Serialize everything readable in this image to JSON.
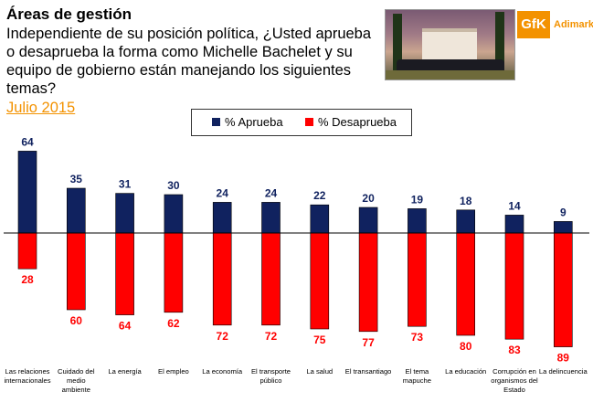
{
  "header": {
    "title": "Áreas de gestión",
    "question": "Independiente de su posición política, ¿Usted aprueba o desaprueba la forma como Michelle Bachelet y su equipo de gobierno están manejando los siguientes temas?",
    "date": "Julio 2015"
  },
  "logo": {
    "mark": "GfK",
    "name": "Adimark"
  },
  "colors": {
    "approve": "#10225f",
    "disapprove": "#ff0000",
    "accent": "#f39200"
  },
  "chart_data": {
    "type": "bar",
    "categories": [
      "Las relaciones internacionales",
      "Cuidado del medio ambiente",
      "La energía",
      "El empleo",
      "La economía",
      "El transporte público",
      "La salud",
      "El transantiago",
      "El tema mapuche",
      "La educación",
      "Corrupción en organismos del Estado",
      "La delincuencia"
    ],
    "category_lines": [
      [
        "Las relaciones",
        "internacionales"
      ],
      [
        "Cuidado del",
        "medio",
        "ambiente"
      ],
      [
        "La energía"
      ],
      [
        "El empleo"
      ],
      [
        "La economía"
      ],
      [
        "El transporte",
        "público"
      ],
      [
        "La salud"
      ],
      [
        "El transantiago"
      ],
      [
        "El tema",
        "mapuche"
      ],
      [
        "La educación"
      ],
      [
        "Corrupción en",
        "organismos del",
        "Estado"
      ],
      [
        "La delincuencia"
      ]
    ],
    "series": [
      {
        "name": "% Aprueba",
        "values": [
          64,
          35,
          31,
          30,
          24,
          24,
          22,
          20,
          19,
          18,
          14,
          9
        ]
      },
      {
        "name": "% Desaprueba",
        "values": [
          28,
          60,
          64,
          62,
          72,
          72,
          75,
          77,
          73,
          80,
          83,
          89
        ]
      }
    ],
    "legend_position": "top-center",
    "grid": false
  }
}
